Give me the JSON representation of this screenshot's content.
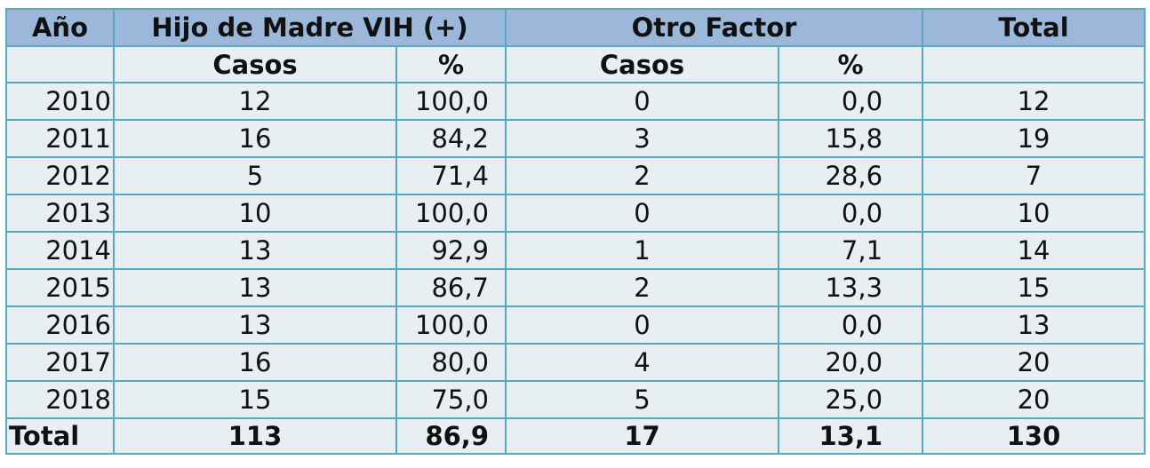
{
  "header": {
    "year": "Año",
    "group1": "Hijo de Madre VIH (+)",
    "group2": "Otro Factor",
    "total": "Total",
    "cases1": "Casos",
    "pct1": "%",
    "cases2": "Casos",
    "pct2": "%"
  },
  "rows": [
    {
      "year": "2010",
      "c1": "12",
      "p1": "100,0",
      "c2": "0",
      "p2": "0,0",
      "total": "12"
    },
    {
      "year": "2011",
      "c1": "16",
      "p1": "84,2",
      "c2": "3",
      "p2": "15,8",
      "total": "19"
    },
    {
      "year": "2012",
      "c1": "5",
      "p1": "71,4",
      "c2": "2",
      "p2": "28,6",
      "total": "7"
    },
    {
      "year": "2013",
      "c1": "10",
      "p1": "100,0",
      "c2": "0",
      "p2": "0,0",
      "total": "10"
    },
    {
      "year": "2014",
      "c1": "13",
      "p1": "92,9",
      "c2": "1",
      "p2": "7,1",
      "total": "14"
    },
    {
      "year": "2015",
      "c1": "13",
      "p1": "86,7",
      "c2": "2",
      "p2": "13,3",
      "total": "15"
    },
    {
      "year": "2016",
      "c1": "13",
      "p1": "100,0",
      "c2": "0",
      "p2": "0,0",
      "total": "13"
    },
    {
      "year": "2017",
      "c1": "16",
      "p1": "80,0",
      "c2": "4",
      "p2": "20,0",
      "total": "20"
    },
    {
      "year": "2018",
      "c1": "15",
      "p1": "75,0",
      "c2": "5",
      "p2": "25,0",
      "total": "20"
    }
  ],
  "totals": {
    "label": "Total",
    "c1": "113",
    "p1": "86,9",
    "c2": "17",
    "p2": "13,1",
    "total": "130"
  },
  "colors": {
    "header_bg": "#9bb8da",
    "cell_bg": "#e8eff2",
    "border": "#5aa7c0"
  }
}
